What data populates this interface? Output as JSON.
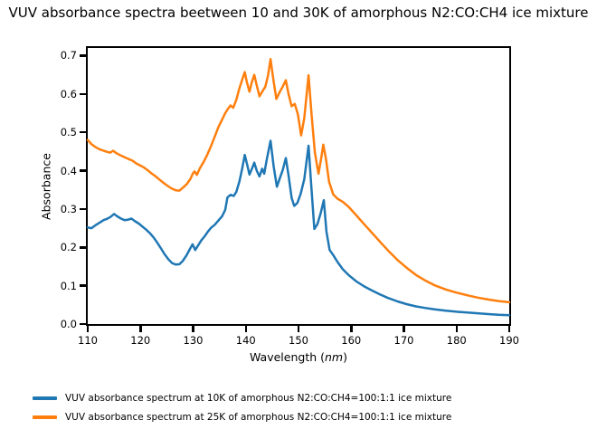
{
  "chart_data": {
    "type": "line",
    "title": "VUV absorbance spectra beetween 10 and 30K of amorphous N2:CO:CH4 ice mixture",
    "xlabel_prefix": "Wavelength (",
    "xlabel_unit": "nm",
    "xlabel_suffix": ")",
    "ylabel": "Absorbance",
    "xlim": [
      110,
      190
    ],
    "ylim": [
      0,
      0.72
    ],
    "x_ticks": [
      110,
      120,
      130,
      140,
      150,
      160,
      170,
      180,
      190
    ],
    "y_ticks": [
      "0.0",
      "0.1",
      "0.2",
      "0.3",
      "0.4",
      "0.5",
      "0.6",
      "0.7"
    ],
    "grid": false,
    "legend_position": "below-left",
    "axis_color": "#000000",
    "series": [
      {
        "name": "VUV absorbance spectrum at 10K of amorphous N2:CO:CH4=100:1:1 ice mixture",
        "temperature": "10K",
        "color": "#1f77b4",
        "points": [
          [
            110,
            0.252
          ],
          [
            110.7,
            0.25
          ],
          [
            111.4,
            0.257
          ],
          [
            112.2,
            0.264
          ],
          [
            113,
            0.271
          ],
          [
            113.6,
            0.274
          ],
          [
            114.3,
            0.279
          ],
          [
            115,
            0.287
          ],
          [
            115.6,
            0.281
          ],
          [
            116.3,
            0.275
          ],
          [
            117,
            0.271
          ],
          [
            117.6,
            0.272
          ],
          [
            118.3,
            0.275
          ],
          [
            119,
            0.268
          ],
          [
            119.7,
            0.262
          ],
          [
            120.4,
            0.254
          ],
          [
            121.1,
            0.246
          ],
          [
            121.8,
            0.237
          ],
          [
            122.5,
            0.226
          ],
          [
            123.2,
            0.212
          ],
          [
            123.9,
            0.197
          ],
          [
            124.6,
            0.182
          ],
          [
            125.3,
            0.169
          ],
          [
            126,
            0.159
          ],
          [
            126.7,
            0.155
          ],
          [
            127.4,
            0.156
          ],
          [
            128,
            0.164
          ],
          [
            128.7,
            0.178
          ],
          [
            129.4,
            0.196
          ],
          [
            129.9,
            0.208
          ],
          [
            130.4,
            0.193
          ],
          [
            131,
            0.206
          ],
          [
            131.6,
            0.219
          ],
          [
            132.2,
            0.229
          ],
          [
            132.8,
            0.241
          ],
          [
            133.4,
            0.251
          ],
          [
            134.1,
            0.259
          ],
          [
            134.8,
            0.27
          ],
          [
            135.5,
            0.281
          ],
          [
            136.1,
            0.298
          ],
          [
            136.5,
            0.33
          ],
          [
            137.1,
            0.337
          ],
          [
            137.7,
            0.334
          ],
          [
            138.2,
            0.345
          ],
          [
            138.8,
            0.373
          ],
          [
            139.3,
            0.405
          ],
          [
            139.8,
            0.441
          ],
          [
            140.2,
            0.419
          ],
          [
            140.7,
            0.39
          ],
          [
            141.1,
            0.403
          ],
          [
            141.6,
            0.421
          ],
          [
            142.1,
            0.399
          ],
          [
            142.6,
            0.385
          ],
          [
            143.1,
            0.405
          ],
          [
            143.5,
            0.392
          ],
          [
            144,
            0.43
          ],
          [
            144.7,
            0.478
          ],
          [
            145.3,
            0.41
          ],
          [
            145.9,
            0.358
          ],
          [
            146.5,
            0.382
          ],
          [
            147,
            0.401
          ],
          [
            147.6,
            0.433
          ],
          [
            148.1,
            0.389
          ],
          [
            148.7,
            0.329
          ],
          [
            149.2,
            0.308
          ],
          [
            149.8,
            0.316
          ],
          [
            150.4,
            0.339
          ],
          [
            151.1,
            0.378
          ],
          [
            151.9,
            0.465
          ],
          [
            152.4,
            0.365
          ],
          [
            153,
            0.248
          ],
          [
            153.6,
            0.261
          ],
          [
            154.2,
            0.289
          ],
          [
            154.8,
            0.323
          ],
          [
            155.3,
            0.241
          ],
          [
            155.9,
            0.193
          ],
          [
            156.6,
            0.18
          ],
          [
            157.4,
            0.162
          ],
          [
            158.4,
            0.143
          ],
          [
            159.5,
            0.128
          ],
          [
            161,
            0.111
          ],
          [
            162.5,
            0.098
          ],
          [
            164,
            0.087
          ],
          [
            165.5,
            0.077
          ],
          [
            167,
            0.068
          ],
          [
            168.8,
            0.059
          ],
          [
            170.5,
            0.052
          ],
          [
            172.3,
            0.046
          ],
          [
            174,
            0.042
          ],
          [
            176,
            0.038
          ],
          [
            178,
            0.035
          ],
          [
            180,
            0.032
          ],
          [
            182,
            0.03
          ],
          [
            184,
            0.028
          ],
          [
            186,
            0.026
          ],
          [
            188,
            0.024
          ],
          [
            190,
            0.023
          ]
        ]
      },
      {
        "name": "VUV absorbance spectrum at 25K of amorphous N2:CO:CH4=100:1:1 ice mixture",
        "temperature": "25K",
        "color": "#ff7f0e",
        "points": [
          [
            110,
            0.48
          ],
          [
            110.7,
            0.469
          ],
          [
            111.4,
            0.462
          ],
          [
            112.2,
            0.456
          ],
          [
            113,
            0.452
          ],
          [
            113.7,
            0.449
          ],
          [
            114.3,
            0.447
          ],
          [
            114.8,
            0.452
          ],
          [
            115.4,
            0.446
          ],
          [
            116.1,
            0.441
          ],
          [
            117,
            0.435
          ],
          [
            117.8,
            0.43
          ],
          [
            118.5,
            0.426
          ],
          [
            119.2,
            0.419
          ],
          [
            120,
            0.413
          ],
          [
            120.6,
            0.409
          ],
          [
            121.3,
            0.402
          ],
          [
            122,
            0.394
          ],
          [
            122.8,
            0.386
          ],
          [
            123.6,
            0.377
          ],
          [
            124.4,
            0.368
          ],
          [
            125.2,
            0.36
          ],
          [
            126,
            0.353
          ],
          [
            126.7,
            0.349
          ],
          [
            127.4,
            0.348
          ],
          [
            128.1,
            0.356
          ],
          [
            128.8,
            0.365
          ],
          [
            129.5,
            0.379
          ],
          [
            130,
            0.394
          ],
          [
            130.3,
            0.398
          ],
          [
            130.7,
            0.389
          ],
          [
            131.3,
            0.407
          ],
          [
            132,
            0.423
          ],
          [
            132.7,
            0.442
          ],
          [
            133.4,
            0.464
          ],
          [
            134.1,
            0.489
          ],
          [
            134.8,
            0.514
          ],
          [
            135.5,
            0.533
          ],
          [
            136.1,
            0.55
          ],
          [
            136.6,
            0.561
          ],
          [
            137.1,
            0.57
          ],
          [
            137.6,
            0.564
          ],
          [
            138.2,
            0.585
          ],
          [
            138.8,
            0.616
          ],
          [
            139.3,
            0.637
          ],
          [
            139.8,
            0.657
          ],
          [
            140.2,
            0.631
          ],
          [
            140.7,
            0.606
          ],
          [
            141.1,
            0.629
          ],
          [
            141.6,
            0.65
          ],
          [
            142.1,
            0.621
          ],
          [
            142.6,
            0.594
          ],
          [
            143.2,
            0.608
          ],
          [
            143.7,
            0.619
          ],
          [
            144.2,
            0.647
          ],
          [
            144.7,
            0.691
          ],
          [
            145.2,
            0.641
          ],
          [
            145.8,
            0.587
          ],
          [
            146.4,
            0.604
          ],
          [
            147,
            0.619
          ],
          [
            147.6,
            0.636
          ],
          [
            148.1,
            0.601
          ],
          [
            148.7,
            0.568
          ],
          [
            149.3,
            0.574
          ],
          [
            149.9,
            0.546
          ],
          [
            150.5,
            0.492
          ],
          [
            151.1,
            0.537
          ],
          [
            151.9,
            0.649
          ],
          [
            152.5,
            0.542
          ],
          [
            153.1,
            0.447
          ],
          [
            153.8,
            0.392
          ],
          [
            154.3,
            0.431
          ],
          [
            154.7,
            0.468
          ],
          [
            155.2,
            0.431
          ],
          [
            155.8,
            0.371
          ],
          [
            156.6,
            0.338
          ],
          [
            157.4,
            0.327
          ],
          [
            158.4,
            0.319
          ],
          [
            159.5,
            0.306
          ],
          [
            161,
            0.283
          ],
          [
            162.5,
            0.26
          ],
          [
            164,
            0.237
          ],
          [
            165.5,
            0.214
          ],
          [
            167,
            0.192
          ],
          [
            168.8,
            0.167
          ],
          [
            170.5,
            0.147
          ],
          [
            172.3,
            0.128
          ],
          [
            174,
            0.114
          ],
          [
            176,
            0.1
          ],
          [
            178,
            0.09
          ],
          [
            180,
            0.082
          ],
          [
            182,
            0.075
          ],
          [
            184,
            0.069
          ],
          [
            186,
            0.064
          ],
          [
            188,
            0.06
          ],
          [
            190,
            0.057
          ]
        ]
      }
    ]
  }
}
